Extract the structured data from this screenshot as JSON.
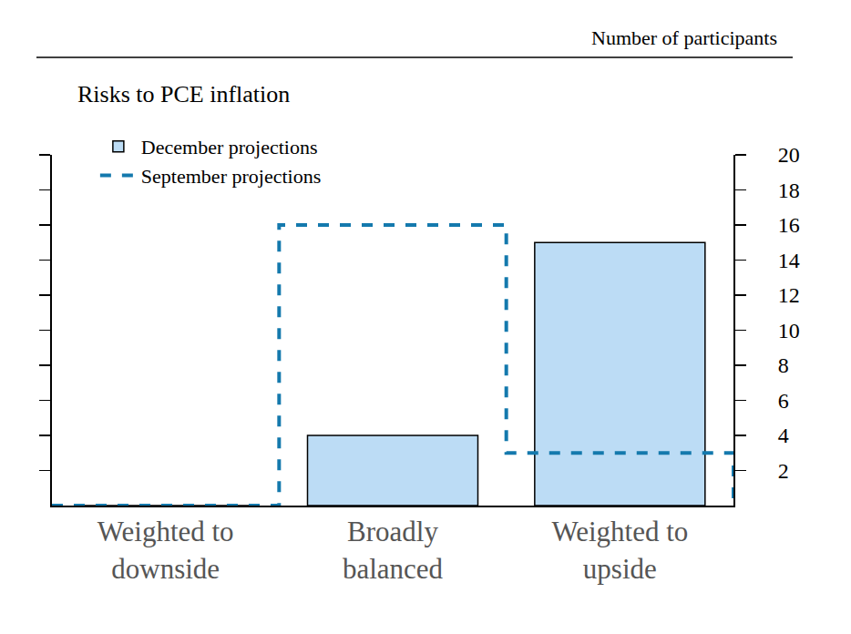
{
  "chart_data": {
    "type": "bar",
    "title": "Risks to PCE inflation",
    "y_label": "Number of participants",
    "categories": [
      "Weighted to downside",
      "Broadly balanced",
      "Weighted to upside"
    ],
    "series": [
      {
        "name": "December projections",
        "type": "bar",
        "color": "#bcdcf5",
        "values": [
          0,
          4,
          15
        ]
      },
      {
        "name": "September projections",
        "type": "step",
        "color": "#1479ad",
        "line_style": "dash",
        "values": [
          0,
          16,
          3
        ]
      }
    ],
    "ylim": [
      0,
      20
    ],
    "yticks": [
      2,
      4,
      6,
      8,
      10,
      12,
      14,
      16,
      18,
      20
    ],
    "grid": false,
    "legend": "top-left"
  }
}
